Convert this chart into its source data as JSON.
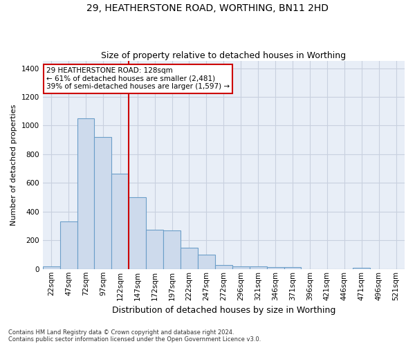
{
  "title1": "29, HEATHERSTONE ROAD, WORTHING, BN11 2HD",
  "title2": "Size of property relative to detached houses in Worthing",
  "xlabel": "Distribution of detached houses by size in Worthing",
  "ylabel": "Number of detached properties",
  "footnote": "Contains HM Land Registry data © Crown copyright and database right 2024.\nContains public sector information licensed under the Open Government Licence v3.0.",
  "bar_color": "#cddaec",
  "bar_edge_color": "#6b9ec8",
  "grid_color": "#c8d0df",
  "background_color": "#e8eef7",
  "categories": [
    "22sqm",
    "47sqm",
    "72sqm",
    "97sqm",
    "122sqm",
    "147sqm",
    "172sqm",
    "197sqm",
    "222sqm",
    "247sqm",
    "272sqm",
    "296sqm",
    "321sqm",
    "346sqm",
    "371sqm",
    "396sqm",
    "421sqm",
    "446sqm",
    "471sqm",
    "496sqm",
    "521sqm"
  ],
  "values": [
    20,
    330,
    1050,
    920,
    665,
    500,
    275,
    270,
    150,
    100,
    30,
    20,
    20,
    15,
    12,
    0,
    0,
    0,
    10,
    0,
    0
  ],
  "vline_idx": 4,
  "annotation_text": "29 HEATHERSTONE ROAD: 128sqm\n← 61% of detached houses are smaller (2,481)\n39% of semi-detached houses are larger (1,597) →",
  "annotation_box_color": "#ffffff",
  "annotation_border_color": "#cc0000",
  "vline_color": "#cc0000",
  "ylim": [
    0,
    1450
  ],
  "yticks": [
    0,
    200,
    400,
    600,
    800,
    1000,
    1200,
    1400
  ],
  "title1_fontsize": 10,
  "title2_fontsize": 9,
  "xlabel_fontsize": 9,
  "ylabel_fontsize": 8,
  "tick_fontsize": 7.5,
  "annot_fontsize": 7.5,
  "footnote_fontsize": 6
}
